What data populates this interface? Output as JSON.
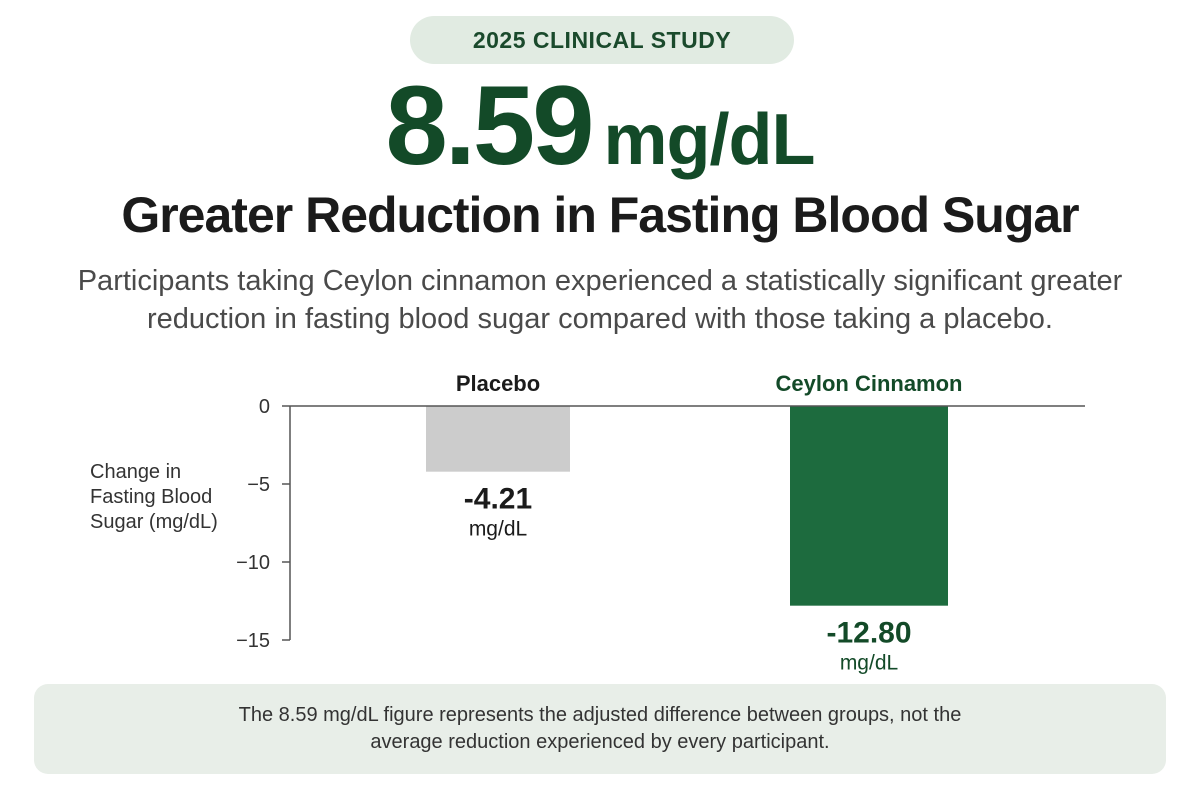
{
  "badge": "2025 CLINICAL STUDY",
  "headline": {
    "number": "8.59",
    "unit": "mg/dL"
  },
  "subhead": "Greater Reduction in Fasting Blood Sugar",
  "description": "Participants taking Ceylon cinnamon experienced a statistically significant greater reduction in fasting blood sugar compared with those taking a placebo.",
  "chart_data": {
    "type": "bar",
    "categories": [
      "Placebo",
      "Ceylon Cinnamon"
    ],
    "values": [
      -4.21,
      -12.8
    ],
    "value_labels": [
      "-4.21",
      "-12.80"
    ],
    "value_unit": "mg/dL",
    "ylabel": "Change in Fasting Blood Sugar (mg/dL)",
    "xlabel": "",
    "ylim": [
      -15,
      0
    ],
    "yticks": [
      0,
      -5,
      -10,
      -15
    ],
    "ytick_labels": [
      "0",
      "−5",
      "−10",
      "−15"
    ],
    "grid": false,
    "colors": {
      "Placebo": "#cccccc",
      "Ceylon Cinnamon": "#1d6b3e"
    },
    "category_label_colors": [
      "#1b1b1b",
      "#134a28"
    ],
    "value_label_colors": [
      "#1b1b1b",
      "#134a28"
    ]
  },
  "footer": "The 8.59 mg/dL figure represents the adjusted difference between groups, not the average reduction experienced by every participant."
}
